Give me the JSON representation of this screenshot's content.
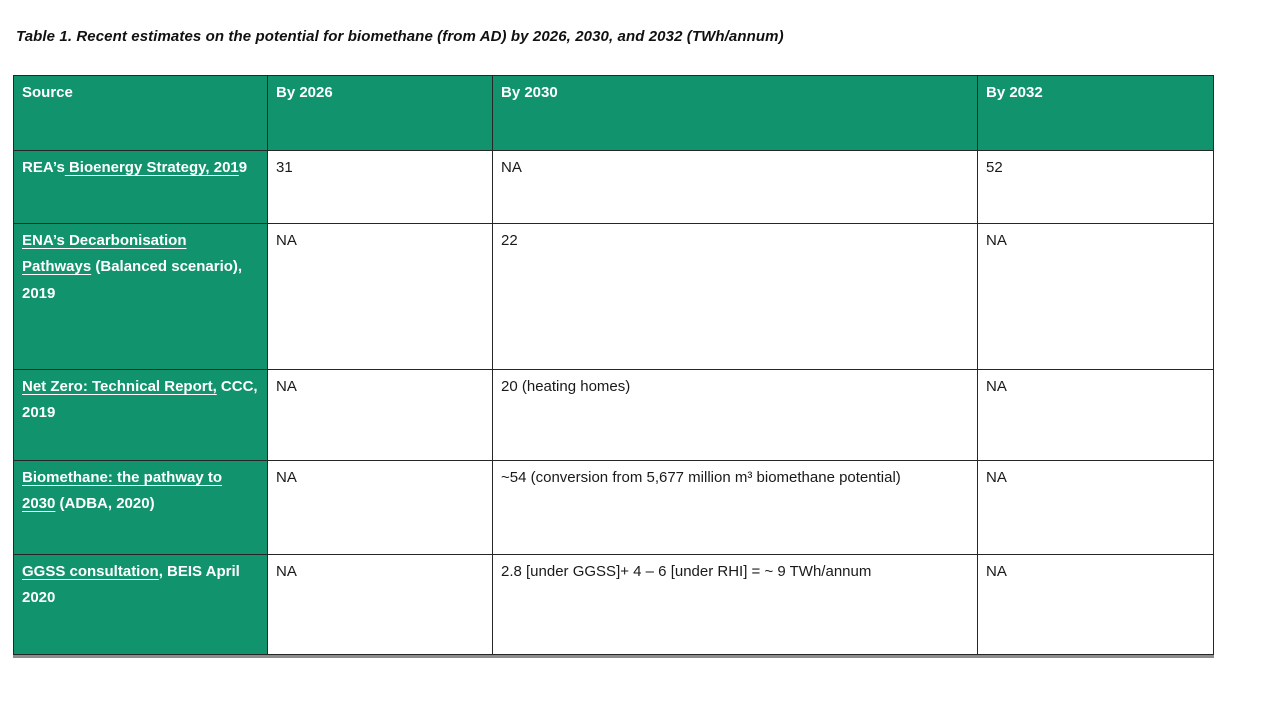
{
  "slide": {
    "title": "Table 1. Recent estimates on the potential for biomethane (from AD) by 2026, 2030, and 2032 (TWh/annum)"
  },
  "colors": {
    "green": "#11946D",
    "header_text": "#FFFFFF",
    "body_text": "#1A1A1A",
    "border": "#262626",
    "shadow": "#8C8C8C"
  },
  "table": {
    "columns": [
      "Source",
      "By 2026",
      "By 2030",
      "By 2032"
    ],
    "rows": [
      {
        "source": [
          {
            "text": "REA’s",
            "link": false
          },
          {
            "text": " Bioenergy Strategy, 201",
            "link": true
          },
          {
            "text": "9",
            "link": false
          }
        ],
        "by2026": "31",
        "by2030": "NA",
        "by2032": "52"
      },
      {
        "source": [
          {
            "text": "ENA’s Decarbonisation Pathways",
            "link": true
          },
          {
            "text": " (Balanced scenario), 2019",
            "link": false
          }
        ],
        "by2026": "NA",
        "by2030": "22",
        "by2032": "NA"
      },
      {
        "source": [
          {
            "text": "Net Zero: Technical Report,",
            "link": true
          },
          {
            "text": " CCC, 2019",
            "link": false
          }
        ],
        "by2026": "NA",
        "by2030": "20 (heating homes)",
        "by2032": "NA"
      },
      {
        "source": [
          {
            "text": "Biomethane: the pathway to 2030",
            "link": true
          },
          {
            "text": " (ADBA, 2020)",
            "link": false
          }
        ],
        "by2026": "NA",
        "by2030": "~54 (conversion from 5,677 million m³ biomethane potential)",
        "by2032": "NA"
      },
      {
        "source": [
          {
            "text": "GGSS consultation",
            "link": true
          },
          {
            "text": ", BEIS April 2020",
            "link": false
          }
        ],
        "by2026": "NA",
        "by2030": "2.8 [under GGSS]+ 4 – 6 [under RHI] = ~ 9 TWh/annum",
        "by2032": "NA"
      }
    ]
  }
}
